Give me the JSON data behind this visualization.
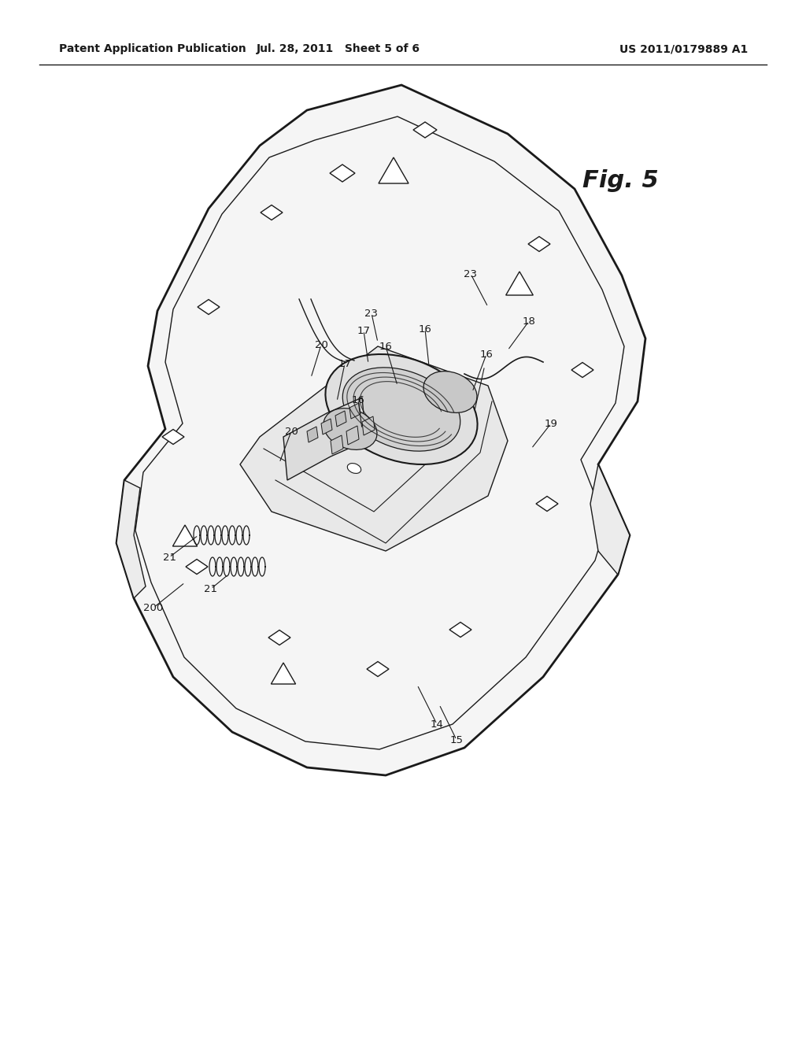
{
  "background_color": "#ffffff",
  "line_color": "#1a1a1a",
  "header_left": "Patent Application Publication",
  "header_center": "Jul. 28, 2011   Sheet 5 of 6",
  "header_right": "US 2011/0179889 A1",
  "fig_label": "Fig. 5",
  "header_fontsize": 10,
  "fig_label_fontsize": 22
}
